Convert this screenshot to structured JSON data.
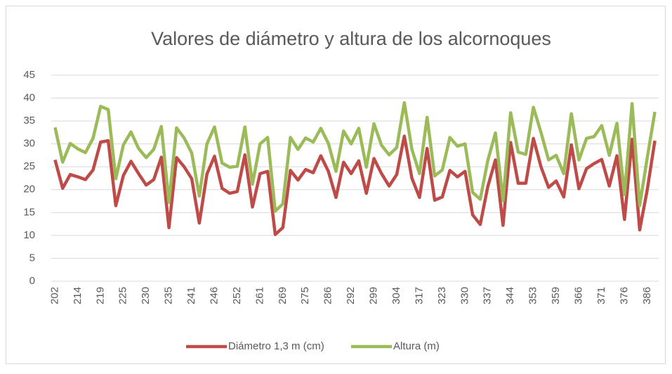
{
  "chart_data": {
    "type": "line",
    "title": "Valores de diámetro y altura de los alcornoques",
    "categories": [
      "202",
      null,
      null,
      "214",
      null,
      null,
      "219",
      null,
      null,
      "225",
      null,
      null,
      "230",
      null,
      null,
      "235",
      null,
      null,
      "241",
      null,
      null,
      "246",
      null,
      null,
      "252",
      null,
      null,
      "261",
      null,
      null,
      "269",
      null,
      null,
      "275",
      null,
      null,
      "286",
      null,
      null,
      "292",
      null,
      null,
      "299",
      null,
      null,
      "304",
      null,
      null,
      "317",
      null,
      null,
      "323",
      null,
      null,
      "330",
      null,
      null,
      "337",
      null,
      null,
      "344",
      null,
      null,
      "353",
      null,
      null,
      "359",
      null,
      null,
      "366",
      null,
      null,
      "371",
      null,
      null,
      "376",
      null,
      null,
      "386",
      null
    ],
    "series": [
      {
        "name": "Diámetro 1,3 m (cm)",
        "color": "#be4b48",
        "values": [
          26.5,
          20.3,
          23.3,
          22.8,
          22.2,
          24.3,
          30.4,
          30.7,
          16.5,
          23.1,
          26.2,
          23.5,
          21.0,
          22.2,
          27.1,
          11.7,
          27.0,
          25.0,
          22.4,
          12.7,
          23.4,
          27.3,
          20.3,
          19.2,
          19.6,
          27.6,
          16.2,
          23.5,
          24.0,
          10.2,
          11.7,
          24.2,
          22.1,
          24.4,
          23.7,
          27.4,
          24.0,
          18.3,
          26.0,
          23.5,
          26.3,
          19.2,
          26.8,
          23.5,
          20.8,
          23.3,
          31.7,
          22.5,
          18.3,
          29.0,
          17.7,
          18.4,
          24.2,
          22.8,
          24.0,
          14.5,
          12.4,
          20.7,
          26.5,
          12.2,
          30.3,
          21.4,
          21.4,
          31.2,
          25.0,
          20.5,
          21.9,
          18.4,
          29.8,
          20.2,
          24.6,
          25.7,
          26.6,
          20.8,
          27.4,
          13.5,
          31.0,
          11.2,
          20.0,
          30.7
        ]
      },
      {
        "name": "Altura (m)",
        "color": "#9bbb59",
        "values": [
          33.6,
          26.0,
          30.1,
          28.9,
          28.1,
          31.2,
          38.2,
          37.5,
          22.4,
          29.8,
          32.6,
          29.0,
          27.0,
          28.8,
          33.8,
          17.2,
          33.5,
          31.3,
          28.0,
          18.6,
          30.0,
          33.7,
          25.8,
          24.9,
          25.1,
          33.7,
          21.2,
          30.0,
          31.4,
          15.3,
          16.9,
          31.4,
          28.8,
          31.3,
          30.4,
          33.4,
          30.1,
          24.0,
          32.8,
          30.0,
          33.4,
          24.9,
          34.4,
          29.7,
          27.6,
          29.2,
          39.0,
          28.8,
          23.5,
          35.8,
          23.0,
          24.3,
          31.4,
          29.5,
          30.0,
          19.4,
          17.9,
          26.4,
          32.4,
          17.6,
          36.8,
          28.2,
          27.7,
          38.0,
          32.5,
          26.5,
          27.5,
          23.5,
          36.6,
          26.5,
          31.2,
          31.6,
          34.0,
          27.5,
          34.5,
          18.9,
          38.8,
          16.5,
          27.0,
          37.0
        ]
      }
    ],
    "ylim": [
      0,
      45
    ],
    "yticks": [
      0,
      5,
      10,
      15,
      20,
      25,
      30,
      35,
      40,
      45
    ],
    "grid": true,
    "legend": "bottom"
  }
}
